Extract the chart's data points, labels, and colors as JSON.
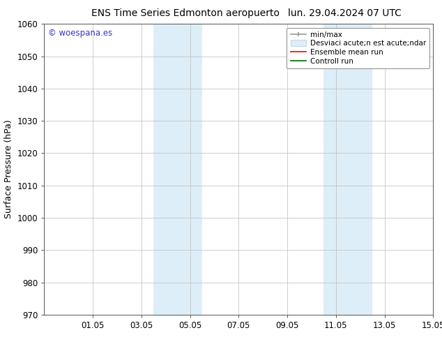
{
  "title_left": "ENS Time Series Edmonton aeropuerto",
  "title_right": "lun. 29.04.2024 07 UTC",
  "ylabel": "Surface Pressure (hPa)",
  "ylim": [
    970,
    1060
  ],
  "yticks": [
    970,
    980,
    990,
    1000,
    1010,
    1020,
    1030,
    1040,
    1050,
    1060
  ],
  "xlim": [
    0,
    16
  ],
  "xtick_labels": [
    "01.05",
    "03.05",
    "05.05",
    "07.05",
    "09.05",
    "11.05",
    "13.05",
    "15.05"
  ],
  "xtick_positions": [
    2,
    4,
    6,
    8,
    10,
    12,
    14,
    16
  ],
  "shaded_bands": [
    {
      "x_start": 4.5,
      "x_end": 6.5,
      "color": "#ddeef8"
    },
    {
      "x_start": 11.5,
      "x_end": 13.5,
      "color": "#ddeef8"
    }
  ],
  "watermark_text": "© woespana.es",
  "watermark_color": "#3333cc",
  "background_color": "#ffffff",
  "grid_color": "#bbbbbb",
  "title_fontsize": 10,
  "axis_label_fontsize": 9,
  "tick_fontsize": 8.5,
  "legend_fontsize": 7.5
}
